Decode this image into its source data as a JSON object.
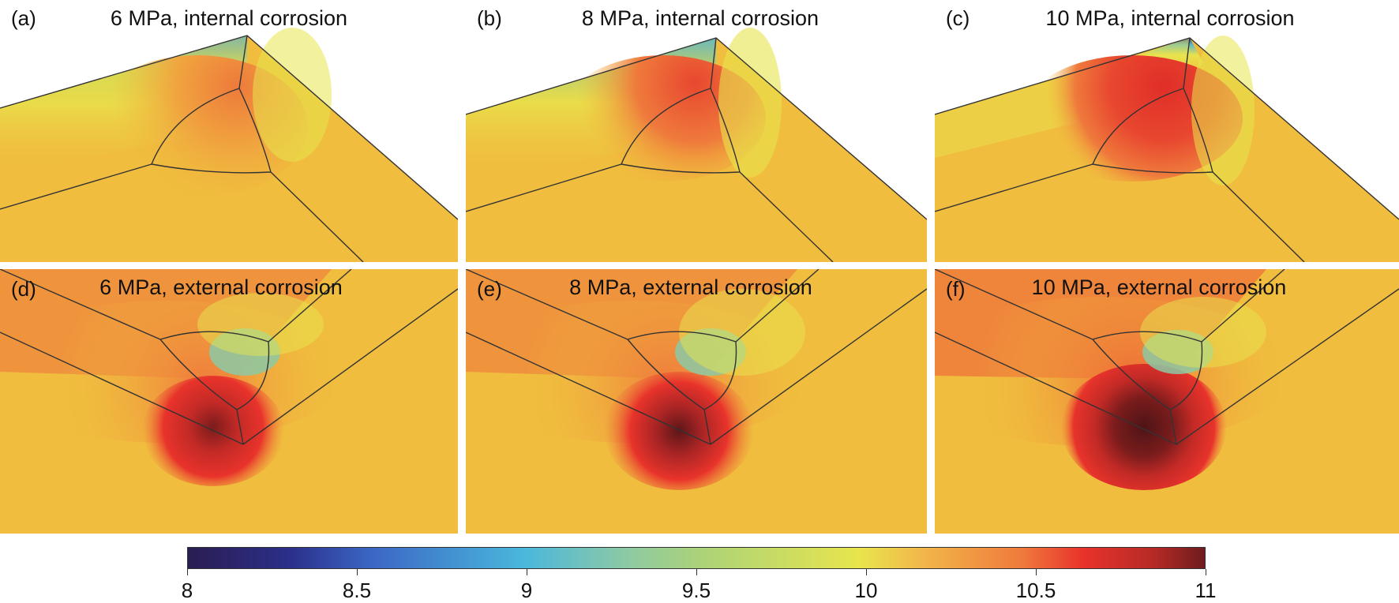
{
  "panels": [
    {
      "label": "(a)",
      "title": "6 MPa, internal corrosion"
    },
    {
      "label": "(b)",
      "title": "8 MPa, internal corrosion"
    },
    {
      "label": "(c)",
      "title": "10 MPa, internal corrosion"
    },
    {
      "label": "(d)",
      "title": "6 MPa, external corrosion"
    },
    {
      "label": "(e)",
      "title": "8 MPa, external corrosion"
    },
    {
      "label": "(f)",
      "title": "10 MPa, external corrosion"
    }
  ],
  "colorbar": {
    "min": 8,
    "max": 11,
    "ticks": [
      "8",
      "8.5",
      "9",
      "9.5",
      "10",
      "10.5",
      "11"
    ],
    "colors": [
      "#2b1d52",
      "#3b66c4",
      "#4ab7dc",
      "#a9d27a",
      "#e8e54d",
      "#ef7a3c",
      "#6e1c1e"
    ]
  }
}
